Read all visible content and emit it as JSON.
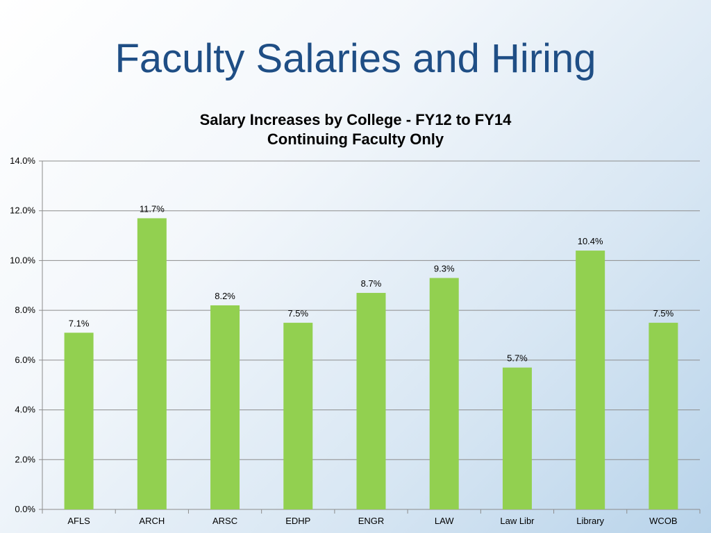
{
  "slide": {
    "title": "Faculty Salaries and Hiring"
  },
  "chart_data": {
    "type": "bar",
    "title": "Salary Increases by College - FY12 to FY14",
    "subtitle": "Continuing Faculty Only",
    "xlabel": "",
    "ylabel": "",
    "categories": [
      "AFLS",
      "ARCH",
      "ARSC",
      "EDHP",
      "ENGR",
      "LAW",
      "Law Libr",
      "Library",
      "WCOB"
    ],
    "values": [
      7.1,
      11.7,
      8.2,
      7.5,
      8.7,
      9.3,
      5.7,
      10.4,
      7.5
    ],
    "data_labels": [
      "7.1%",
      "11.7%",
      "8.2%",
      "7.5%",
      "8.7%",
      "9.3%",
      "5.7%",
      "10.4%",
      "7.5%"
    ],
    "ylim": [
      0,
      14
    ],
    "yticks": [
      0,
      2,
      4,
      6,
      8,
      10,
      12,
      14
    ],
    "ytick_labels": [
      "0.0%",
      "2.0%",
      "4.0%",
      "6.0%",
      "8.0%",
      "10.0%",
      "12.0%",
      "14.0%"
    ],
    "grid": true,
    "legend": "none",
    "bar_color": "#92d050",
    "grid_color": "#8c8c8c"
  }
}
